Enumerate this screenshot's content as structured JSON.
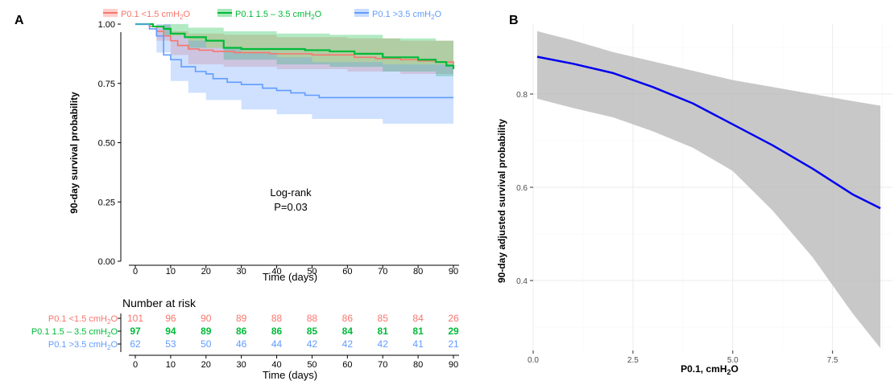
{
  "chart_data": [
    {
      "panel": "A",
      "type": "line",
      "subtype": "kaplan-meier",
      "xlabel": "Time (days)",
      "ylabel": "90-day survival probability",
      "xlim": [
        0,
        90
      ],
      "ylim": [
        0,
        1
      ],
      "xticks": [
        0,
        10,
        20,
        30,
        40,
        50,
        60,
        70,
        80,
        90
      ],
      "yticks": [
        "0.00",
        "0.25",
        "0.50",
        "0.75",
        "1.00"
      ],
      "grid": false,
      "legend_position": "top",
      "annotation": {
        "line1": "Log-rank",
        "line2": "P=0.03"
      },
      "series": [
        {
          "name": "P0.1 <1.5 cmH2O",
          "label_pre": "P0.1 <1.5 cmH",
          "label_sub": "2",
          "label_post": "O",
          "color": "#F8766D",
          "steps": [
            [
              0,
              1.0
            ],
            [
              4,
              0.99
            ],
            [
              6,
              0.97
            ],
            [
              8,
              0.95
            ],
            [
              10,
              0.93
            ],
            [
              12,
              0.91
            ],
            [
              15,
              0.895
            ],
            [
              18,
              0.89
            ],
            [
              22,
              0.885
            ],
            [
              28,
              0.88
            ],
            [
              38,
              0.875
            ],
            [
              50,
              0.87
            ],
            [
              62,
              0.86
            ],
            [
              68,
              0.855
            ],
            [
              75,
              0.85
            ],
            [
              80,
              0.845
            ],
            [
              85,
              0.84
            ],
            [
              90,
              0.83
            ]
          ],
          "ci_upper": [
            [
              0,
              1.0
            ],
            [
              6,
              0.995
            ],
            [
              10,
              0.97
            ],
            [
              15,
              0.96
            ],
            [
              25,
              0.955
            ],
            [
              40,
              0.945
            ],
            [
              60,
              0.94
            ],
            [
              75,
              0.93
            ],
            [
              90,
              0.92
            ]
          ],
          "ci_lower": [
            [
              0,
              1.0
            ],
            [
              6,
              0.93
            ],
            [
              10,
              0.87
            ],
            [
              15,
              0.83
            ],
            [
              25,
              0.82
            ],
            [
              40,
              0.81
            ],
            [
              60,
              0.8
            ],
            [
              75,
              0.79
            ],
            [
              90,
              0.77
            ]
          ]
        },
        {
          "name": "P0.1 1.5 – 3.5 cmH2O",
          "label_pre": "P0.1 1.5 – 3.5 cmH",
          "label_sub": "2",
          "label_post": "O",
          "color": "#00BA38",
          "steps": [
            [
              0,
              1.0
            ],
            [
              5,
              0.99
            ],
            [
              8,
              0.98
            ],
            [
              10,
              0.96
            ],
            [
              14,
              0.945
            ],
            [
              20,
              0.93
            ],
            [
              25,
              0.9
            ],
            [
              30,
              0.895
            ],
            [
              40,
              0.895
            ],
            [
              48,
              0.89
            ],
            [
              55,
              0.885
            ],
            [
              62,
              0.875
            ],
            [
              70,
              0.86
            ],
            [
              80,
              0.85
            ],
            [
              85,
              0.84
            ],
            [
              88,
              0.825
            ],
            [
              90,
              0.81
            ]
          ],
          "ci_upper": [
            [
              0,
              1.0
            ],
            [
              8,
              1.0
            ],
            [
              15,
              0.985
            ],
            [
              25,
              0.97
            ],
            [
              40,
              0.96
            ],
            [
              55,
              0.955
            ],
            [
              70,
              0.94
            ],
            [
              85,
              0.93
            ],
            [
              90,
              0.91
            ]
          ],
          "ci_lower": [
            [
              0,
              1.0
            ],
            [
              8,
              0.95
            ],
            [
              15,
              0.9
            ],
            [
              25,
              0.85
            ],
            [
              40,
              0.83
            ],
            [
              55,
              0.82
            ],
            [
              70,
              0.8
            ],
            [
              85,
              0.78
            ],
            [
              90,
              0.76
            ]
          ]
        },
        {
          "name": "P0.1 >3.5 cmH2O",
          "label_pre": "P0.1 >3.5 cmH",
          "label_sub": "2",
          "label_post": "O",
          "color": "#619CFF",
          "steps": [
            [
              0,
              1.0
            ],
            [
              4,
              0.98
            ],
            [
              6,
              0.95
            ],
            [
              8,
              0.87
            ],
            [
              10,
              0.85
            ],
            [
              13,
              0.82
            ],
            [
              17,
              0.8
            ],
            [
              20,
              0.79
            ],
            [
              22,
              0.77
            ],
            [
              26,
              0.755
            ],
            [
              30,
              0.745
            ],
            [
              36,
              0.73
            ],
            [
              40,
              0.72
            ],
            [
              44,
              0.71
            ],
            [
              48,
              0.7
            ],
            [
              52,
              0.69
            ],
            [
              70,
              0.69
            ],
            [
              90,
              0.69
            ]
          ],
          "ci_upper": [
            [
              0,
              1.0
            ],
            [
              6,
              1.0
            ],
            [
              10,
              0.95
            ],
            [
              15,
              0.93
            ],
            [
              20,
              0.9
            ],
            [
              30,
              0.88
            ],
            [
              40,
              0.86
            ],
            [
              50,
              0.84
            ],
            [
              70,
              0.83
            ],
            [
              90,
              0.83
            ]
          ],
          "ci_lower": [
            [
              0,
              1.0
            ],
            [
              6,
              0.88
            ],
            [
              10,
              0.76
            ],
            [
              15,
              0.71
            ],
            [
              20,
              0.68
            ],
            [
              30,
              0.64
            ],
            [
              40,
              0.62
            ],
            [
              50,
              0.6
            ],
            [
              70,
              0.58
            ],
            [
              90,
              0.58
            ]
          ]
        }
      ],
      "risk_table": {
        "title": "Number at risk",
        "xlabel": "Time (days)",
        "times": [
          0,
          10,
          20,
          30,
          40,
          50,
          60,
          70,
          80,
          90
        ],
        "rows": [
          {
            "label": "P0.1 <1.5 cmH2O",
            "color": "#F8766D",
            "values": [
              101,
              96,
              90,
              89,
              88,
              88,
              86,
              85,
              84,
              26
            ]
          },
          {
            "label": "P0.1 1.5 – 3.5 cmH2O",
            "color": "#00BA38",
            "values": [
              97,
              94,
              89,
              86,
              86,
              85,
              84,
              81,
              81,
              29
            ]
          },
          {
            "label": "P0.1 >3.5 cmH2O",
            "color": "#619CFF",
            "values": [
              62,
              53,
              50,
              46,
              44,
              42,
              42,
              42,
              41,
              21
            ]
          }
        ]
      }
    },
    {
      "panel": "B",
      "type": "line",
      "subtype": "fitted-curve-with-ci",
      "xlabel_pre": "P0.1, cmH",
      "xlabel_sub": "2",
      "xlabel_post": "O",
      "ylabel": "90-day adjusted survival probability",
      "xlim": [
        0,
        9.0
      ],
      "ylim": [
        0.25,
        0.95
      ],
      "xticks": [
        "0.0",
        "2.5",
        "5.0",
        "7.5"
      ],
      "yticks": [
        "0.4",
        "0.6",
        "0.8"
      ],
      "grid": true,
      "line_color": "#0000EE",
      "band_color": "#BEBEBE",
      "x": [
        0.1,
        1.0,
        2.0,
        3.0,
        4.0,
        5.0,
        6.0,
        7.0,
        8.0,
        8.7
      ],
      "y": [
        0.88,
        0.865,
        0.845,
        0.815,
        0.78,
        0.735,
        0.69,
        0.64,
        0.585,
        0.555
      ],
      "upper": [
        0.935,
        0.915,
        0.89,
        0.87,
        0.85,
        0.83,
        0.815,
        0.8,
        0.785,
        0.775
      ],
      "lower": [
        0.79,
        0.77,
        0.75,
        0.72,
        0.685,
        0.635,
        0.55,
        0.45,
        0.33,
        0.255
      ]
    }
  ]
}
